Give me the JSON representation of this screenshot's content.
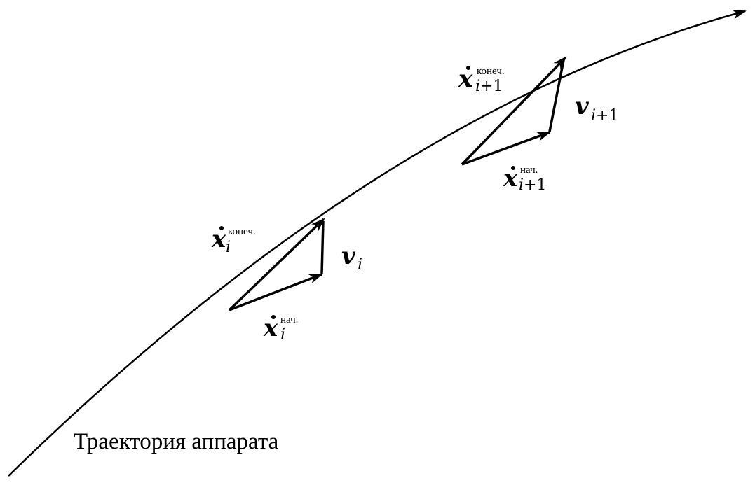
{
  "caption": "Траектория аппарата",
  "step_i": {
    "x_end_symbol": "x",
    "x_end_sub": "i",
    "x_end_sup": "конеч.",
    "x_start_symbol": "x",
    "x_start_sub": "i",
    "x_start_sup": "нач.",
    "v_symbol": "v",
    "v_sub": "i"
  },
  "step_i1": {
    "x_end_symbol": "x",
    "x_end_sub_var": "i",
    "x_end_sub_rest": "+1",
    "x_end_sup": "конеч.",
    "x_start_symbol": "x",
    "x_start_sub_var": "i",
    "x_start_sub_rest": "+1",
    "x_start_sup": "нач.",
    "v_symbol": "v",
    "v_sub_var": "i",
    "v_sub_rest": "+1"
  },
  "colors": {
    "ink": "#000000",
    "background": "#ffffff"
  }
}
